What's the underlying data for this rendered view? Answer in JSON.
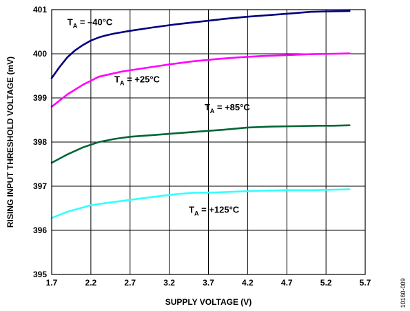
{
  "chart_data": {
    "type": "line",
    "xlabel": "SUPPLY VOLTAGE (V)",
    "ylabel": "RISING INPUT THRESHOLD VOLTAGE (mV)",
    "xlim": [
      1.7,
      5.7
    ],
    "ylim": [
      395,
      401
    ],
    "x_ticks": [
      "1.7",
      "2.2",
      "2.7",
      "3.2",
      "3.7",
      "4.2",
      "4.7",
      "5.2",
      "5.7"
    ],
    "y_ticks": [
      "395",
      "396",
      "397",
      "398",
      "399",
      "400",
      "401"
    ],
    "grid": true,
    "series": [
      {
        "label_main": "T",
        "label_sub": "A",
        "label_rest": " = –40°C",
        "color": "#000080",
        "x": [
          1.7,
          1.8,
          1.9,
          2.0,
          2.1,
          2.2,
          2.3,
          2.4,
          2.5,
          2.7,
          3.0,
          3.3,
          3.6,
          3.9,
          4.2,
          4.5,
          4.8,
          5.0,
          5.2,
          5.5
        ],
        "y": [
          399.45,
          399.7,
          399.92,
          400.08,
          400.2,
          400.3,
          400.37,
          400.42,
          400.46,
          400.52,
          400.6,
          400.67,
          400.73,
          400.79,
          400.84,
          400.88,
          400.92,
          400.95,
          400.96,
          400.97
        ]
      },
      {
        "label_main": "T",
        "label_sub": "A",
        "label_rest": " = +25°C",
        "color": "#ff00ff",
        "x": [
          1.7,
          1.9,
          2.1,
          2.3,
          2.4,
          2.6,
          2.9,
          3.2,
          3.5,
          3.8,
          4.1,
          4.4,
          4.7,
          5.0,
          5.3,
          5.5
        ],
        "y": [
          398.8,
          399.08,
          399.3,
          399.48,
          399.52,
          399.6,
          399.68,
          399.76,
          399.83,
          399.88,
          399.92,
          399.95,
          399.97,
          399.99,
          400.0,
          400.01
        ]
      },
      {
        "label_main": "T",
        "label_sub": "A",
        "label_rest": " = +85°C",
        "color": "#006633",
        "x": [
          1.7,
          1.9,
          2.1,
          2.3,
          2.5,
          2.7,
          3.0,
          3.3,
          3.6,
          3.9,
          4.2,
          4.5,
          4.8,
          5.1,
          5.3,
          5.5
        ],
        "y": [
          397.53,
          397.72,
          397.88,
          398.0,
          398.07,
          398.12,
          398.16,
          398.2,
          398.24,
          398.28,
          398.33,
          398.35,
          398.36,
          398.37,
          398.37,
          398.38
        ]
      },
      {
        "label_main": "T",
        "label_sub": "A",
        "label_rest": " = +125°C",
        "color": "#33ffff",
        "x": [
          1.7,
          1.9,
          2.1,
          2.2,
          2.4,
          2.7,
          3.0,
          3.3,
          3.5,
          3.8,
          4.1,
          4.4,
          4.7,
          5.0,
          5.3,
          5.5
        ],
        "y": [
          396.28,
          396.42,
          396.52,
          396.57,
          396.62,
          396.69,
          396.76,
          396.82,
          396.85,
          396.86,
          396.88,
          396.9,
          396.91,
          396.91,
          396.92,
          396.93
        ]
      }
    ],
    "annotations": [
      {
        "series": 0,
        "x": 1.9,
        "y": 400.65
      },
      {
        "series": 1,
        "x": 2.5,
        "y": 399.35
      },
      {
        "series": 2,
        "x": 3.65,
        "y": 398.72
      },
      {
        "series": 3,
        "x": 3.45,
        "y": 396.4
      }
    ]
  },
  "figure_id": "10160-009"
}
